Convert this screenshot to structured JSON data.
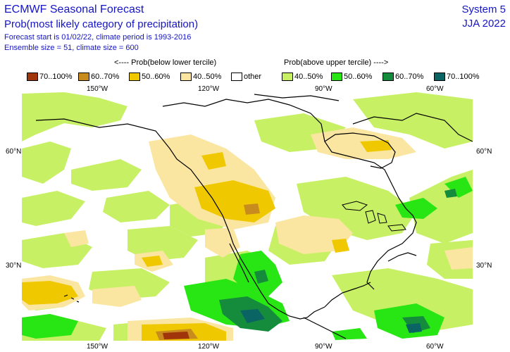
{
  "header": {
    "title": "ECMWF Seasonal Forecast",
    "subtitle": "Prob(most likely category of precipitation)",
    "info_line1": "Forecast start is 01/02/22, climate period is 1993-2016",
    "info_line2": "Ensemble size = 51, climate size = 600",
    "system": "System 5",
    "season": "JJA 2022"
  },
  "legend": {
    "below_label": "<---- Prob(below lower tercile)",
    "above_label": "Prob(above upper tercile) ---->",
    "items": [
      {
        "label": "70..100%",
        "color": "#a0340a"
      },
      {
        "label": "60..70%",
        "color": "#c88c1e"
      },
      {
        "label": "50..60%",
        "color": "#f0c800"
      },
      {
        "label": "40..50%",
        "color": "#fae6a0"
      },
      {
        "label": "other",
        "color": "#ffffff"
      },
      {
        "label": "40..50%",
        "color": "#c8f064"
      },
      {
        "label": "50..60%",
        "color": "#28e614"
      },
      {
        "label": "60..70%",
        "color": "#148c3c"
      },
      {
        "label": "70..100%",
        "color": "#0a6464"
      }
    ]
  },
  "axes": {
    "lon_ticks": [
      "150°W",
      "120°W",
      "90°W",
      "60°W"
    ],
    "lat_ticks": [
      "60°N",
      "30°N"
    ]
  },
  "map": {
    "region": "North America",
    "land_outline_color": "#000000"
  }
}
